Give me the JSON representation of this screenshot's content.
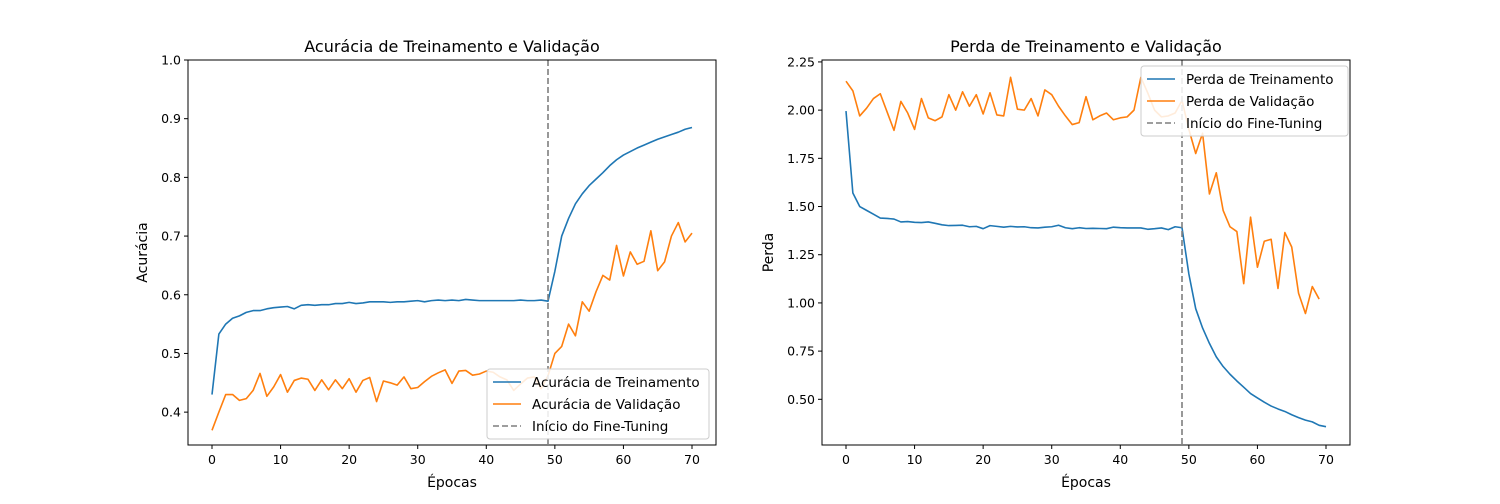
{
  "chart_data": [
    {
      "type": "line",
      "title": "Acurácia de Treinamento e Validação",
      "xlabel": "Épocas",
      "ylabel": "Acurácia",
      "xlim": [
        -3.5,
        73.5
      ],
      "ylim": [
        0.344,
        1.0
      ],
      "xticks": [
        0,
        10,
        20,
        30,
        40,
        50,
        60,
        70
      ],
      "xtick_labels": [
        "0",
        "10",
        "20",
        "30",
        "40",
        "50",
        "60",
        "70"
      ],
      "yticks": [
        0.4,
        0.5,
        0.6,
        0.7,
        0.8,
        0.9,
        1.0
      ],
      "ytick_labels": [
        "0.4",
        "0.5",
        "0.6",
        "0.7",
        "0.8",
        "0.9",
        "1.0"
      ],
      "grid": false,
      "legend_position": "lower-right",
      "vline": {
        "x": 49,
        "name": "Início do Fine-Tuning",
        "color": "#7f7f7f"
      },
      "series": [
        {
          "name": "Acurácia de Treinamento",
          "color": "#1f77b4",
          "x": [
            0,
            1,
            2,
            3,
            4,
            5,
            6,
            7,
            8,
            9,
            10,
            11,
            12,
            13,
            14,
            15,
            16,
            17,
            18,
            19,
            20,
            21,
            22,
            23,
            24,
            25,
            26,
            27,
            28,
            29,
            30,
            31,
            32,
            33,
            34,
            35,
            36,
            37,
            38,
            39,
            40,
            41,
            42,
            43,
            44,
            45,
            46,
            47,
            48,
            49,
            50,
            51,
            52,
            53,
            54,
            55,
            56,
            57,
            58,
            59,
            60,
            61,
            62,
            63,
            64,
            65,
            66,
            67,
            68,
            69,
            70
          ],
          "values": [
            0.43,
            0.533,
            0.55,
            0.56,
            0.564,
            0.57,
            0.573,
            0.573,
            0.576,
            0.578,
            0.579,
            0.58,
            0.576,
            0.582,
            0.583,
            0.582,
            0.583,
            0.583,
            0.585,
            0.585,
            0.587,
            0.585,
            0.586,
            0.588,
            0.588,
            0.588,
            0.587,
            0.588,
            0.588,
            0.589,
            0.59,
            0.588,
            0.59,
            0.591,
            0.59,
            0.591,
            0.59,
            0.592,
            0.591,
            0.59,
            0.59,
            0.59,
            0.59,
            0.59,
            0.59,
            0.591,
            0.59,
            0.59,
            0.591,
            0.589,
            0.64,
            0.7,
            0.73,
            0.755,
            0.772,
            0.786,
            0.797,
            0.808,
            0.82,
            0.83,
            0.838,
            0.844,
            0.85,
            0.855,
            0.86,
            0.865,
            0.869,
            0.873,
            0.877,
            0.882,
            0.885
          ]
        },
        {
          "name": "Acurácia de Validação",
          "color": "#ff7f0e",
          "x": [
            0,
            1,
            2,
            3,
            4,
            5,
            6,
            7,
            8,
            9,
            10,
            11,
            12,
            13,
            14,
            15,
            16,
            17,
            18,
            19,
            20,
            21,
            22,
            23,
            24,
            25,
            26,
            27,
            28,
            29,
            30,
            31,
            32,
            33,
            34,
            35,
            36,
            37,
            38,
            39,
            40,
            41,
            42,
            43,
            44,
            45,
            46,
            47,
            48,
            49,
            50,
            51,
            52,
            53,
            54,
            55,
            56,
            57,
            58,
            59,
            60,
            61,
            62,
            63,
            64,
            65,
            66,
            67,
            68,
            69,
            70
          ],
          "values": [
            0.369,
            0.4,
            0.43,
            0.43,
            0.42,
            0.423,
            0.437,
            0.466,
            0.427,
            0.443,
            0.464,
            0.434,
            0.454,
            0.458,
            0.456,
            0.437,
            0.455,
            0.438,
            0.455,
            0.44,
            0.457,
            0.434,
            0.454,
            0.459,
            0.418,
            0.453,
            0.45,
            0.446,
            0.46,
            0.44,
            0.442,
            0.452,
            0.461,
            0.467,
            0.472,
            0.449,
            0.47,
            0.471,
            0.463,
            0.465,
            0.47,
            0.468,
            0.46,
            0.455,
            0.437,
            0.448,
            0.458,
            0.46,
            0.44,
            0.462,
            0.5,
            0.512,
            0.55,
            0.53,
            0.588,
            0.572,
            0.605,
            0.633,
            0.625,
            0.684,
            0.632,
            0.673,
            0.652,
            0.657,
            0.709,
            0.641,
            0.656,
            0.7,
            0.723,
            0.69,
            0.705
          ]
        }
      ]
    },
    {
      "type": "line",
      "title": "Perda de Treinamento e Validação",
      "xlabel": "Épocas",
      "ylabel": "Perda",
      "xlim": [
        -3.5,
        73.5
      ],
      "ylim": [
        0.263,
        2.26
      ],
      "xticks": [
        0,
        10,
        20,
        30,
        40,
        50,
        60,
        70
      ],
      "xtick_labels": [
        "0",
        "10",
        "20",
        "30",
        "40",
        "50",
        "60",
        "70"
      ],
      "yticks": [
        0.5,
        0.75,
        1.0,
        1.25,
        1.5,
        1.75,
        2.0,
        2.25
      ],
      "ytick_labels": [
        "0.50",
        "0.75",
        "1.00",
        "1.25",
        "1.50",
        "1.75",
        "2.00",
        "2.25"
      ],
      "grid": false,
      "legend_position": "upper-right",
      "vline": {
        "x": 49,
        "name": "Início do Fine-Tuning",
        "color": "#7f7f7f"
      },
      "series": [
        {
          "name": "Perda de Treinamento",
          "color": "#1f77b4",
          "x": [
            0,
            1,
            2,
            3,
            4,
            5,
            6,
            7,
            8,
            9,
            10,
            11,
            12,
            13,
            14,
            15,
            16,
            17,
            18,
            19,
            20,
            21,
            22,
            23,
            24,
            25,
            26,
            27,
            28,
            29,
            30,
            31,
            32,
            33,
            34,
            35,
            36,
            37,
            38,
            39,
            40,
            41,
            42,
            43,
            44,
            45,
            46,
            47,
            48,
            49,
            50,
            51,
            52,
            53,
            54,
            55,
            56,
            57,
            58,
            59,
            60,
            61,
            62,
            63,
            64,
            65,
            66,
            67,
            68,
            69,
            70
          ],
          "values": [
            1.995,
            1.57,
            1.5,
            1.48,
            1.46,
            1.44,
            1.438,
            1.435,
            1.42,
            1.422,
            1.418,
            1.417,
            1.42,
            1.413,
            1.405,
            1.401,
            1.402,
            1.403,
            1.395,
            1.397,
            1.385,
            1.401,
            1.397,
            1.393,
            1.397,
            1.394,
            1.395,
            1.39,
            1.389,
            1.393,
            1.395,
            1.403,
            1.39,
            1.385,
            1.39,
            1.386,
            1.387,
            1.386,
            1.385,
            1.393,
            1.39,
            1.389,
            1.389,
            1.389,
            1.382,
            1.385,
            1.389,
            1.38,
            1.395,
            1.39,
            1.15,
            0.97,
            0.87,
            0.79,
            0.72,
            0.67,
            0.63,
            0.595,
            0.563,
            0.53,
            0.507,
            0.485,
            0.465,
            0.45,
            0.437,
            0.42,
            0.405,
            0.392,
            0.383,
            0.365,
            0.358
          ]
        },
        {
          "name": "Perda de Validação",
          "color": "#ff7f0e",
          "x": [
            0,
            1,
            2,
            3,
            4,
            5,
            6,
            7,
            8,
            9,
            10,
            11,
            12,
            13,
            14,
            15,
            16,
            17,
            18,
            19,
            20,
            21,
            22,
            23,
            24,
            25,
            26,
            27,
            28,
            29,
            30,
            31,
            32,
            33,
            34,
            35,
            36,
            37,
            38,
            39,
            40,
            41,
            42,
            43,
            44,
            45,
            46,
            47,
            48,
            49,
            50,
            51,
            52,
            53,
            54,
            55,
            56,
            57,
            58,
            59,
            60,
            61,
            62,
            63,
            64,
            65,
            66,
            67,
            68,
            69,
            70
          ],
          "values": [
            2.15,
            2.1,
            1.97,
            2.01,
            2.06,
            2.085,
            1.99,
            1.895,
            2.045,
            1.985,
            1.9,
            2.06,
            1.96,
            1.945,
            1.965,
            2.08,
            2.0,
            2.095,
            2.02,
            2.08,
            1.98,
            2.09,
            1.975,
            1.97,
            2.17,
            2.005,
            2.0,
            2.06,
            1.97,
            2.105,
            2.08,
            2.02,
            1.97,
            1.925,
            1.935,
            2.07,
            1.95,
            1.97,
            1.985,
            1.95,
            1.96,
            1.965,
            2.0,
            2.17,
            2.09,
            2.0,
            1.965,
            1.97,
            1.985,
            2.05,
            1.9,
            1.775,
            1.88,
            1.565,
            1.675,
            1.48,
            1.395,
            1.37,
            1.1,
            1.445,
            1.185,
            1.32,
            1.33,
            1.075,
            1.365,
            1.29,
            1.05,
            0.945,
            1.085,
            1.02,
            null
          ]
        }
      ]
    }
  ]
}
